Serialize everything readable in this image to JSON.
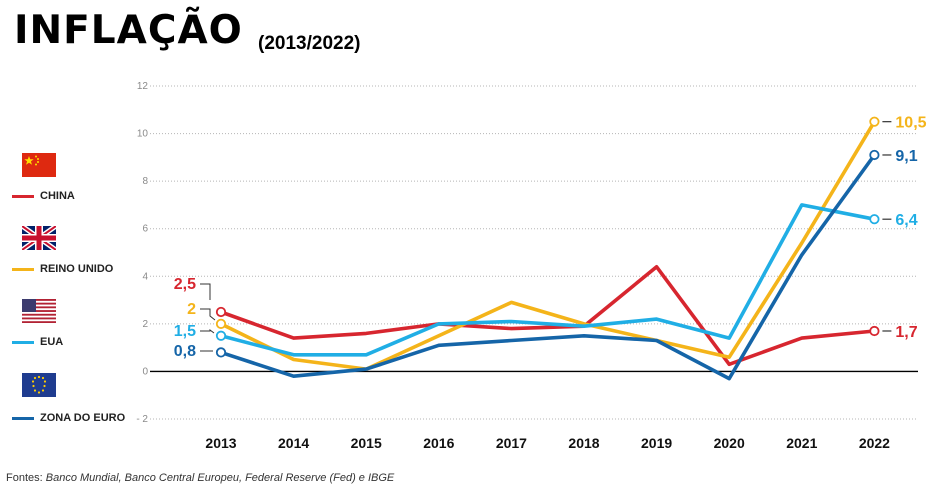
{
  "header": {
    "title": "INFLAÇÃO",
    "subtitle": "(2013/2022)"
  },
  "legend": [
    {
      "label": "CHINA",
      "icon": "china-flag-icon",
      "color": "#d7262f"
    },
    {
      "label": "REINO UNIDO",
      "icon": "uk-flag-icon",
      "color": "#f4b41a"
    },
    {
      "label": "EUA",
      "icon": "usa-flag-icon",
      "color": "#20aee5"
    },
    {
      "label": "ZONA DO EURO",
      "icon": "eu-flag-icon",
      "color": "#1565a8"
    }
  ],
  "footer": {
    "prefix": "Fontes: ",
    "sources": "Banco Mundial, Banco Central Europeu, Federal Reserve (Fed) e IBGE"
  },
  "chart_data": {
    "type": "line",
    "title": "INFLAÇÃO",
    "subtitle": "(2013/2022)",
    "xlabel": "",
    "ylabel": "",
    "x": [
      "2013",
      "2014",
      "2015",
      "2016",
      "2017",
      "2018",
      "2019",
      "2020",
      "2021",
      "2022"
    ],
    "ylim": [
      -2,
      12
    ],
    "yticks": [
      -2,
      0,
      2,
      4,
      6,
      8,
      10,
      12
    ],
    "grid": "horizontal dotted",
    "legend_position": "left",
    "series": [
      {
        "name": "CHINA",
        "color": "#d7262f",
        "values": [
          2.5,
          1.4,
          1.6,
          2.0,
          1.8,
          1.9,
          4.4,
          0.3,
          1.4,
          1.7
        ],
        "start_label": "2,5",
        "end_label": "1,7"
      },
      {
        "name": "REINO UNIDO",
        "color": "#f4b41a",
        "values": [
          2.0,
          0.5,
          0.1,
          1.5,
          2.9,
          2.0,
          1.3,
          0.6,
          5.4,
          10.5
        ],
        "start_label": "2",
        "end_label": "10,5"
      },
      {
        "name": "EUA",
        "color": "#20aee5",
        "values": [
          1.5,
          0.7,
          0.7,
          2.0,
          2.1,
          1.9,
          2.2,
          1.4,
          7.0,
          6.4
        ],
        "start_label": "1,5",
        "end_label": "6,4"
      },
      {
        "name": "ZONA DO EURO",
        "color": "#1565a8",
        "values": [
          0.8,
          -0.2,
          0.1,
          1.1,
          1.3,
          1.5,
          1.3,
          -0.3,
          4.9,
          9.1
        ],
        "start_label": "0,8",
        "end_label": "9,1"
      }
    ]
  }
}
